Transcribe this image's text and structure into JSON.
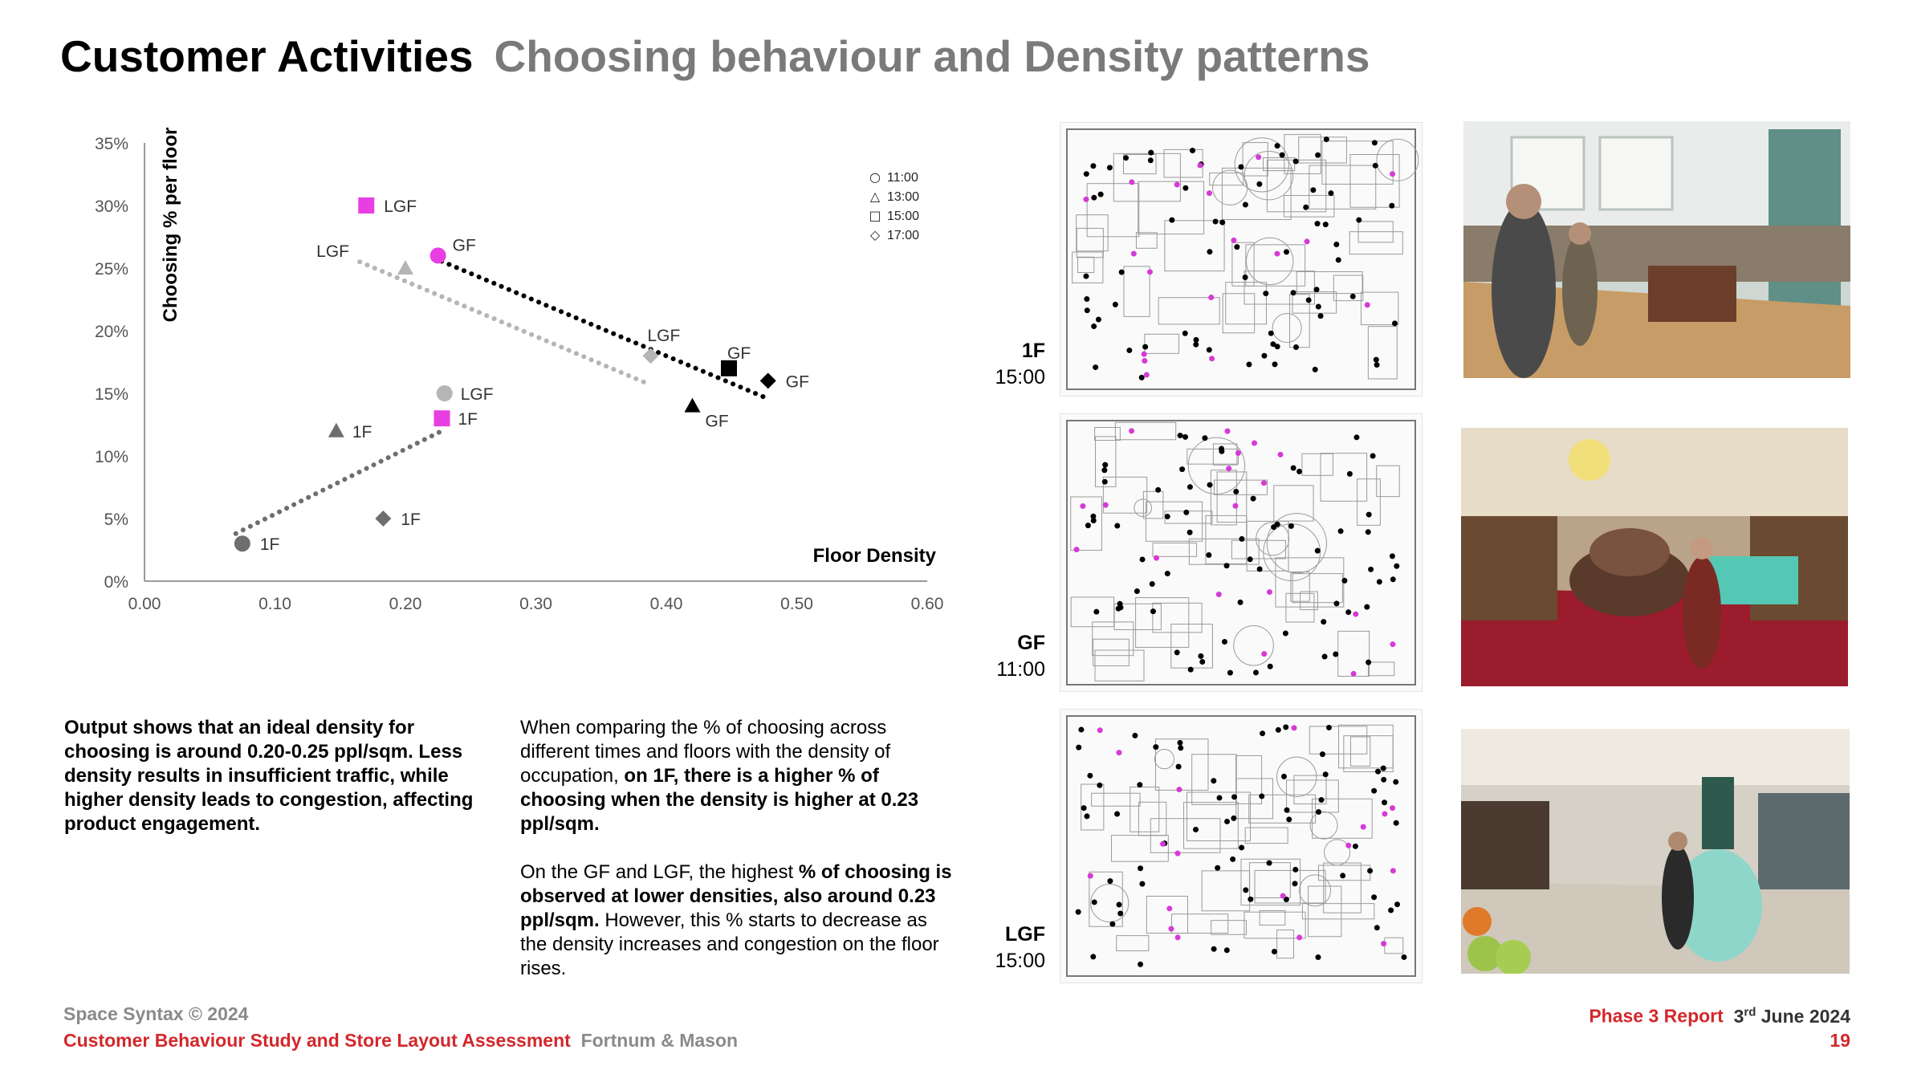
{
  "title": {
    "main": "Customer Activities",
    "sub": "Choosing behaviour and Density patterns"
  },
  "chart_data": {
    "type": "scatter",
    "ylabel": "Choosing % per floor",
    "xlabel": "Floor Density",
    "xlim": [
      0,
      0.6
    ],
    "ylim": [
      0,
      0.35
    ],
    "x_ticks": [
      "0.00",
      "0.10",
      "0.20",
      "0.30",
      "0.40",
      "0.50",
      "0.60"
    ],
    "y_ticks": [
      "0%",
      "5%",
      "10%",
      "15%",
      "20%",
      "25%",
      "30%",
      "35%"
    ],
    "legend": [
      {
        "marker": "circle",
        "label": "11:00",
        "symbol": "○"
      },
      {
        "marker": "triangle",
        "label": "13:00",
        "symbol": "△"
      },
      {
        "marker": "square",
        "label": "15:00",
        "symbol": "□"
      },
      {
        "marker": "diamond",
        "label": "17:00",
        "symbol": "◇"
      }
    ],
    "points": [
      {
        "label": "LGF",
        "x": 0.17,
        "y": 0.3,
        "marker": "square",
        "color": "#e93ee3"
      },
      {
        "label": "LGF",
        "x": 0.2,
        "y": 0.25,
        "marker": "triangle",
        "color": "#b5b5b5"
      },
      {
        "label": "GF",
        "x": 0.225,
        "y": 0.26,
        "marker": "circle",
        "color": "#e93ee3"
      },
      {
        "label": "LGF",
        "x": 0.388,
        "y": 0.18,
        "marker": "diamond",
        "color": "#b5b5b5"
      },
      {
        "label": "GF",
        "x": 0.448,
        "y": 0.17,
        "marker": "square",
        "color": "#000000"
      },
      {
        "label": "GF",
        "x": 0.478,
        "y": 0.16,
        "marker": "diamond",
        "color": "#000000"
      },
      {
        "label": "GF",
        "x": 0.42,
        "y": 0.14,
        "marker": "triangle",
        "color": "#000000"
      },
      {
        "label": "LGF",
        "x": 0.23,
        "y": 0.15,
        "marker": "circle",
        "color": "#b5b5b5"
      },
      {
        "label": "1F",
        "x": 0.228,
        "y": 0.13,
        "marker": "square",
        "color": "#e93ee3"
      },
      {
        "label": "1F",
        "x": 0.147,
        "y": 0.12,
        "marker": "triangle",
        "color": "#6e6e6e"
      },
      {
        "label": "1F",
        "x": 0.183,
        "y": 0.05,
        "marker": "diamond",
        "color": "#6e6e6e"
      },
      {
        "label": "1F",
        "x": 0.075,
        "y": 0.03,
        "marker": "circle",
        "color": "#6e6e6e"
      }
    ],
    "trendlines": [
      {
        "name": "GF",
        "color": "#000000",
        "x": [
          0.222,
          0.475
        ],
        "y": [
          0.258,
          0.147
        ]
      },
      {
        "name": "LGF",
        "color": "#b5b5b5",
        "x": [
          0.165,
          0.385
        ],
        "y": [
          0.255,
          0.158
        ]
      },
      {
        "name": "1F",
        "color": "#6e6e6e",
        "x": [
          0.07,
          0.228
        ],
        "y": [
          0.038,
          0.12
        ]
      }
    ]
  },
  "left_text": "Output shows that an ideal density for choosing is around 0.20-0.25 ppl/sqm. Less density results in insufficient traffic, while higher density leads to congestion, affecting product engagement.",
  "right_text": {
    "p1_a": "When comparing the % of choosing across different times and floors with the density of occupation, ",
    "p1_b": "on 1F, there is a higher % of choosing when the density is higher at 0.23 ppl/sqm.",
    "p2_a": "On the GF and LGF, the highest ",
    "p2_b": "% of choosing is observed at lower densities, also around 0.23 ppl/sqm.",
    "p2_c": " However, this % starts to decrease as the density increases and congestion on the floor rises."
  },
  "plans": [
    {
      "floor": "1F",
      "time": "15:00"
    },
    {
      "floor": "GF",
      "time": "11:00"
    },
    {
      "floor": "LGF",
      "time": "15:00"
    }
  ],
  "footer": {
    "copyright": "Space Syntax © 2024",
    "study": "Customer Behaviour Study and Store Layout Assessment",
    "client": "Fortnum & Mason",
    "report": "Phase 3 Report",
    "date_day": "3",
    "date_suffix": "rd",
    "date_rest": "June 2024",
    "page": "19"
  },
  "colors": {
    "accent_red": "#d2282c",
    "magenta": "#e93ee3",
    "light_grey": "#b5b5b5",
    "mid_grey": "#6e6e6e"
  }
}
